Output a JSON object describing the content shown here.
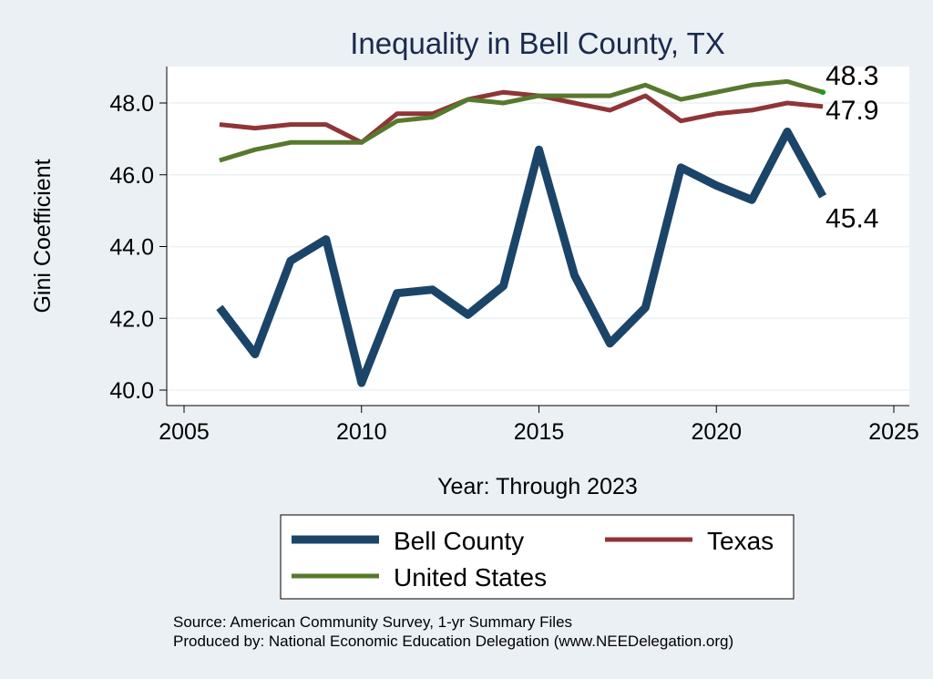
{
  "chart_data": {
    "type": "line",
    "title": "Inequality in Bell County, TX",
    "xlabel": "Year: Through 2023",
    "ylabel": "Gini Coefficient",
    "xlim": [
      2005,
      2025
    ],
    "ylim": [
      40,
      49
    ],
    "xticks": [
      2005,
      2010,
      2015,
      2020,
      2025
    ],
    "yticks": [
      40,
      42,
      44,
      46,
      48
    ],
    "ytick_labels": [
      "40.0",
      "42.0",
      "44.0",
      "46.0",
      "48.0"
    ],
    "grid": true,
    "x": [
      2006,
      2007,
      2008,
      2009,
      2010,
      2011,
      2012,
      2013,
      2014,
      2015,
      2016,
      2017,
      2018,
      2019,
      2020,
      2021,
      2022,
      2023
    ],
    "series": [
      {
        "name": "Bell County",
        "color": "#1b4568",
        "values": [
          42.3,
          41.0,
          43.6,
          44.2,
          40.2,
          42.7,
          42.8,
          42.1,
          42.9,
          46.7,
          43.2,
          41.3,
          42.3,
          46.2,
          45.7,
          45.3,
          47.2,
          45.4
        ],
        "end_label": "45.4"
      },
      {
        "name": "Texas",
        "color": "#903537",
        "values": [
          47.4,
          47.3,
          47.4,
          47.4,
          46.9,
          47.7,
          47.7,
          48.1,
          48.3,
          48.2,
          48.0,
          47.8,
          48.2,
          47.5,
          47.7,
          47.8,
          48.0,
          47.9
        ],
        "end_label": "47.9"
      },
      {
        "name": "United States",
        "color": "#56792d",
        "values": [
          46.4,
          46.7,
          46.9,
          46.9,
          46.9,
          47.5,
          47.6,
          48.1,
          48.0,
          48.2,
          48.2,
          48.2,
          48.5,
          48.1,
          48.3,
          48.5,
          48.6,
          48.3
        ],
        "end_label": "48.3"
      }
    ],
    "legend_position": "bottom"
  },
  "source_lines": [
    "Source: American Community Survey, 1-yr Summary Files",
    "Produced by: National Economic Education Delegation (www.NEEDelegation.org)"
  ]
}
